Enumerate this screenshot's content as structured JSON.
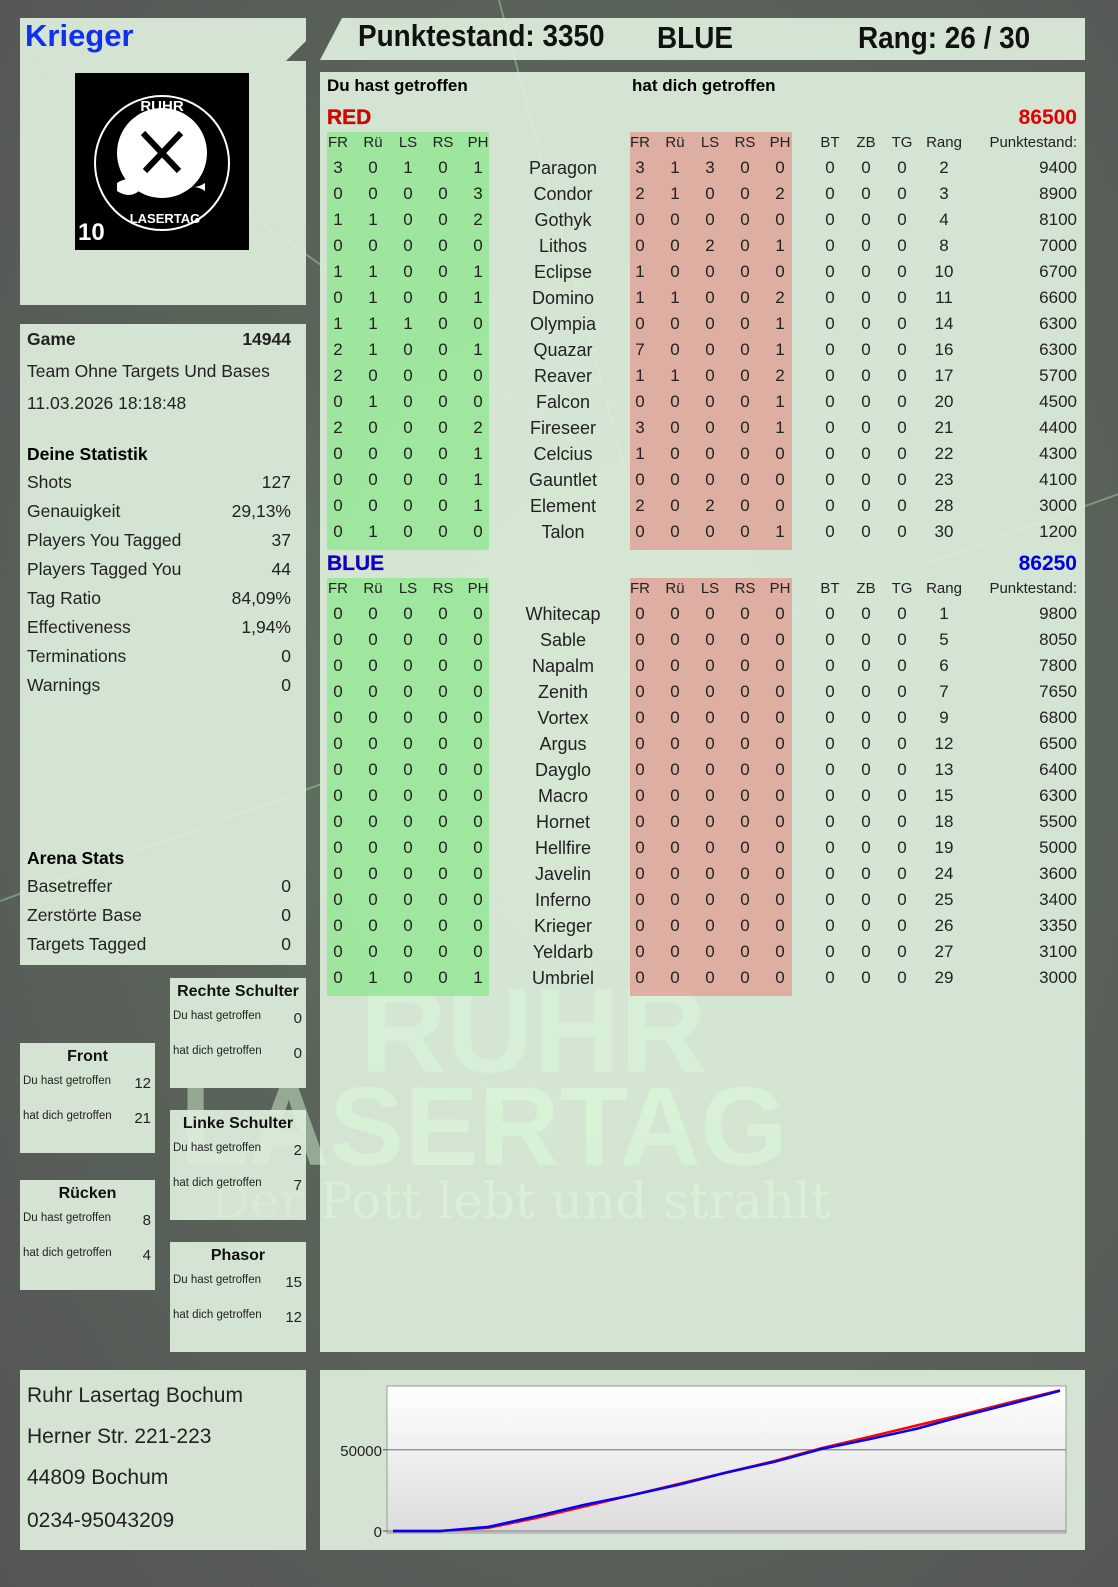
{
  "player": {
    "name": "Krieger",
    "logo_text": "RUHR LASERTAG",
    "logo_number": "10"
  },
  "header": {
    "score_label": "Punktestand: 3350",
    "team": "BLUE",
    "rank_label": "Rang: 26 / 30"
  },
  "table": {
    "you_hit_label": "Du hast getroffen",
    "hit_you_label": "hat dich getroffen",
    "hit_cols": [
      "FR",
      "Rü",
      "LS",
      "RS",
      "PH"
    ],
    "extra_cols": [
      "BT",
      "ZB",
      "TG",
      "Rang",
      "Punktestand:"
    ],
    "teams": [
      {
        "name": "RED",
        "score": "86500",
        "color": "#e00000",
        "rows": [
          {
            "you": [
              3,
              0,
              1,
              0,
              1
            ],
            "name": "Paragon",
            "them": [
              3,
              1,
              3,
              0,
              0
            ],
            "extra": [
              0,
              0,
              0,
              2
            ],
            "score": 9400
          },
          {
            "you": [
              0,
              0,
              0,
              0,
              3
            ],
            "name": "Condor",
            "them": [
              2,
              1,
              0,
              0,
              2
            ],
            "extra": [
              0,
              0,
              0,
              3
            ],
            "score": 8900
          },
          {
            "you": [
              1,
              1,
              0,
              0,
              2
            ],
            "name": "Gothyk",
            "them": [
              0,
              0,
              0,
              0,
              0
            ],
            "extra": [
              0,
              0,
              0,
              4
            ],
            "score": 8100
          },
          {
            "you": [
              0,
              0,
              0,
              0,
              0
            ],
            "name": "Lithos",
            "them": [
              0,
              0,
              2,
              0,
              1
            ],
            "extra": [
              0,
              0,
              0,
              8
            ],
            "score": 7000
          },
          {
            "you": [
              1,
              1,
              0,
              0,
              1
            ],
            "name": "Eclipse",
            "them": [
              1,
              0,
              0,
              0,
              0
            ],
            "extra": [
              0,
              0,
              0,
              10
            ],
            "score": 6700
          },
          {
            "you": [
              0,
              1,
              0,
              0,
              1
            ],
            "name": "Domino",
            "them": [
              1,
              1,
              0,
              0,
              2
            ],
            "extra": [
              0,
              0,
              0,
              11
            ],
            "score": 6600
          },
          {
            "you": [
              1,
              1,
              1,
              0,
              0
            ],
            "name": "Olympia",
            "them": [
              0,
              0,
              0,
              0,
              1
            ],
            "extra": [
              0,
              0,
              0,
              14
            ],
            "score": 6300
          },
          {
            "you": [
              2,
              1,
              0,
              0,
              1
            ],
            "name": "Quazar",
            "them": [
              7,
              0,
              0,
              0,
              1
            ],
            "extra": [
              0,
              0,
              0,
              16
            ],
            "score": 6300
          },
          {
            "you": [
              2,
              0,
              0,
              0,
              0
            ],
            "name": "Reaver",
            "them": [
              1,
              1,
              0,
              0,
              2
            ],
            "extra": [
              0,
              0,
              0,
              17
            ],
            "score": 5700
          },
          {
            "you": [
              0,
              1,
              0,
              0,
              0
            ],
            "name": "Falcon",
            "them": [
              0,
              0,
              0,
              0,
              1
            ],
            "extra": [
              0,
              0,
              0,
              20
            ],
            "score": 4500
          },
          {
            "you": [
              2,
              0,
              0,
              0,
              2
            ],
            "name": "Fireseer",
            "them": [
              3,
              0,
              0,
              0,
              1
            ],
            "extra": [
              0,
              0,
              0,
              21
            ],
            "score": 4400
          },
          {
            "you": [
              0,
              0,
              0,
              0,
              1
            ],
            "name": "Celcius",
            "them": [
              1,
              0,
              0,
              0,
              0
            ],
            "extra": [
              0,
              0,
              0,
              22
            ],
            "score": 4300
          },
          {
            "you": [
              0,
              0,
              0,
              0,
              1
            ],
            "name": "Gauntlet",
            "them": [
              0,
              0,
              0,
              0,
              0
            ],
            "extra": [
              0,
              0,
              0,
              23
            ],
            "score": 4100
          },
          {
            "you": [
              0,
              0,
              0,
              0,
              1
            ],
            "name": "Element",
            "them": [
              2,
              0,
              2,
              0,
              0
            ],
            "extra": [
              0,
              0,
              0,
              28
            ],
            "score": 3000
          },
          {
            "you": [
              0,
              1,
              0,
              0,
              0
            ],
            "name": "Talon",
            "them": [
              0,
              0,
              0,
              0,
              1
            ],
            "extra": [
              0,
              0,
              0,
              30
            ],
            "score": 1200
          }
        ]
      },
      {
        "name": "BLUE",
        "score": "86250",
        "color": "#0000e0",
        "rows": [
          {
            "you": [
              0,
              0,
              0,
              0,
              0
            ],
            "name": "Whitecap",
            "them": [
              0,
              0,
              0,
              0,
              0
            ],
            "extra": [
              0,
              0,
              0,
              1
            ],
            "score": 9800
          },
          {
            "you": [
              0,
              0,
              0,
              0,
              0
            ],
            "name": "Sable",
            "them": [
              0,
              0,
              0,
              0,
              0
            ],
            "extra": [
              0,
              0,
              0,
              5
            ],
            "score": 8050
          },
          {
            "you": [
              0,
              0,
              0,
              0,
              0
            ],
            "name": "Napalm",
            "them": [
              0,
              0,
              0,
              0,
              0
            ],
            "extra": [
              0,
              0,
              0,
              6
            ],
            "score": 7800
          },
          {
            "you": [
              0,
              0,
              0,
              0,
              0
            ],
            "name": "Zenith",
            "them": [
              0,
              0,
              0,
              0,
              0
            ],
            "extra": [
              0,
              0,
              0,
              7
            ],
            "score": 7650
          },
          {
            "you": [
              0,
              0,
              0,
              0,
              0
            ],
            "name": "Vortex",
            "them": [
              0,
              0,
              0,
              0,
              0
            ],
            "extra": [
              0,
              0,
              0,
              9
            ],
            "score": 6800
          },
          {
            "you": [
              0,
              0,
              0,
              0,
              0
            ],
            "name": "Argus",
            "them": [
              0,
              0,
              0,
              0,
              0
            ],
            "extra": [
              0,
              0,
              0,
              12
            ],
            "score": 6500
          },
          {
            "you": [
              0,
              0,
              0,
              0,
              0
            ],
            "name": "Dayglo",
            "them": [
              0,
              0,
              0,
              0,
              0
            ],
            "extra": [
              0,
              0,
              0,
              13
            ],
            "score": 6400
          },
          {
            "you": [
              0,
              0,
              0,
              0,
              0
            ],
            "name": "Macro",
            "them": [
              0,
              0,
              0,
              0,
              0
            ],
            "extra": [
              0,
              0,
              0,
              15
            ],
            "score": 6300
          },
          {
            "you": [
              0,
              0,
              0,
              0,
              0
            ],
            "name": "Hornet",
            "them": [
              0,
              0,
              0,
              0,
              0
            ],
            "extra": [
              0,
              0,
              0,
              18
            ],
            "score": 5500
          },
          {
            "you": [
              0,
              0,
              0,
              0,
              0
            ],
            "name": "Hellfire",
            "them": [
              0,
              0,
              0,
              0,
              0
            ],
            "extra": [
              0,
              0,
              0,
              19
            ],
            "score": 5000
          },
          {
            "you": [
              0,
              0,
              0,
              0,
              0
            ],
            "name": "Javelin",
            "them": [
              0,
              0,
              0,
              0,
              0
            ],
            "extra": [
              0,
              0,
              0,
              24
            ],
            "score": 3600
          },
          {
            "you": [
              0,
              0,
              0,
              0,
              0
            ],
            "name": "Inferno",
            "them": [
              0,
              0,
              0,
              0,
              0
            ],
            "extra": [
              0,
              0,
              0,
              25
            ],
            "score": 3400
          },
          {
            "you": [
              0,
              0,
              0,
              0,
              0
            ],
            "name": "Krieger",
            "them": [
              0,
              0,
              0,
              0,
              0
            ],
            "extra": [
              0,
              0,
              0,
              26
            ],
            "score": 3350
          },
          {
            "you": [
              0,
              0,
              0,
              0,
              0
            ],
            "name": "Yeldarb",
            "them": [
              0,
              0,
              0,
              0,
              0
            ],
            "extra": [
              0,
              0,
              0,
              27
            ],
            "score": 3100
          },
          {
            "you": [
              0,
              1,
              0,
              0,
              1
            ],
            "name": "Umbriel",
            "them": [
              0,
              0,
              0,
              0,
              0
            ],
            "extra": [
              0,
              0,
              0,
              29
            ],
            "score": 3000
          }
        ]
      }
    ]
  },
  "game": {
    "label": "Game",
    "id": "14944",
    "mode": "Team Ohne Targets Und Bases",
    "datetime": "11.03.2026 18:18:48"
  },
  "stats": {
    "title": "Deine Statistik",
    "items": [
      {
        "label": "Shots",
        "value": "127"
      },
      {
        "label": "Genauigkeit",
        "value": "29,13%"
      },
      {
        "label": "Players You Tagged",
        "value": "37"
      },
      {
        "label": "Players Tagged You",
        "value": "44"
      },
      {
        "label": "Tag Ratio",
        "value": "84,09%"
      },
      {
        "label": "Effectiveness",
        "value": "1,94%"
      },
      {
        "label": "Terminations",
        "value": "0"
      },
      {
        "label": "Warnings",
        "value": "0"
      }
    ]
  },
  "arena": {
    "title": "Arena Stats",
    "items": [
      {
        "label": "Basetreffer",
        "value": "0"
      },
      {
        "label": "Zerstörte Base",
        "value": "0"
      },
      {
        "label": "Targets Tagged",
        "value": "0"
      }
    ]
  },
  "zones": {
    "you_label": "Du hast getroffen",
    "them_label": "hat dich getroffen",
    "items": [
      {
        "id": "rechte-schulter",
        "title": "Rechte Schulter",
        "you": "0",
        "them": "0"
      },
      {
        "id": "front",
        "title": "Front",
        "you": "12",
        "them": "21"
      },
      {
        "id": "linke-schulter",
        "title": "Linke Schulter",
        "you": "2",
        "them": "7"
      },
      {
        "id": "ruecken",
        "title": "Rücken",
        "you": "8",
        "them": "4"
      },
      {
        "id": "phasor",
        "title": "Phasor",
        "you": "15",
        "them": "12"
      }
    ]
  },
  "address": {
    "lines": [
      "Ruhr Lasertag Bochum",
      "Herner Str. 221-223",
      "44809 Bochum",
      "0234-95043209"
    ]
  },
  "watermark": {
    "line1": "RUHR",
    "line2": "LASERTAG",
    "slogan": "Der Pott lebt und strahlt"
  },
  "chart_data": {
    "type": "line",
    "yticks": [
      "0",
      "50000"
    ],
    "ylim": [
      0,
      88000
    ],
    "grid": true,
    "series": [
      {
        "color": "#ff0000",
        "values": [
          0,
          0,
          2000,
          8000,
          15000,
          22000,
          29000,
          36000,
          43000,
          51000,
          58000,
          65000,
          72000,
          79500,
          86500
        ]
      },
      {
        "color": "#0000ff",
        "values": [
          0,
          0,
          2500,
          9000,
          16000,
          22000,
          28500,
          36000,
          42500,
          50500,
          56500,
          63000,
          71000,
          78500,
          86250
        ]
      }
    ]
  }
}
